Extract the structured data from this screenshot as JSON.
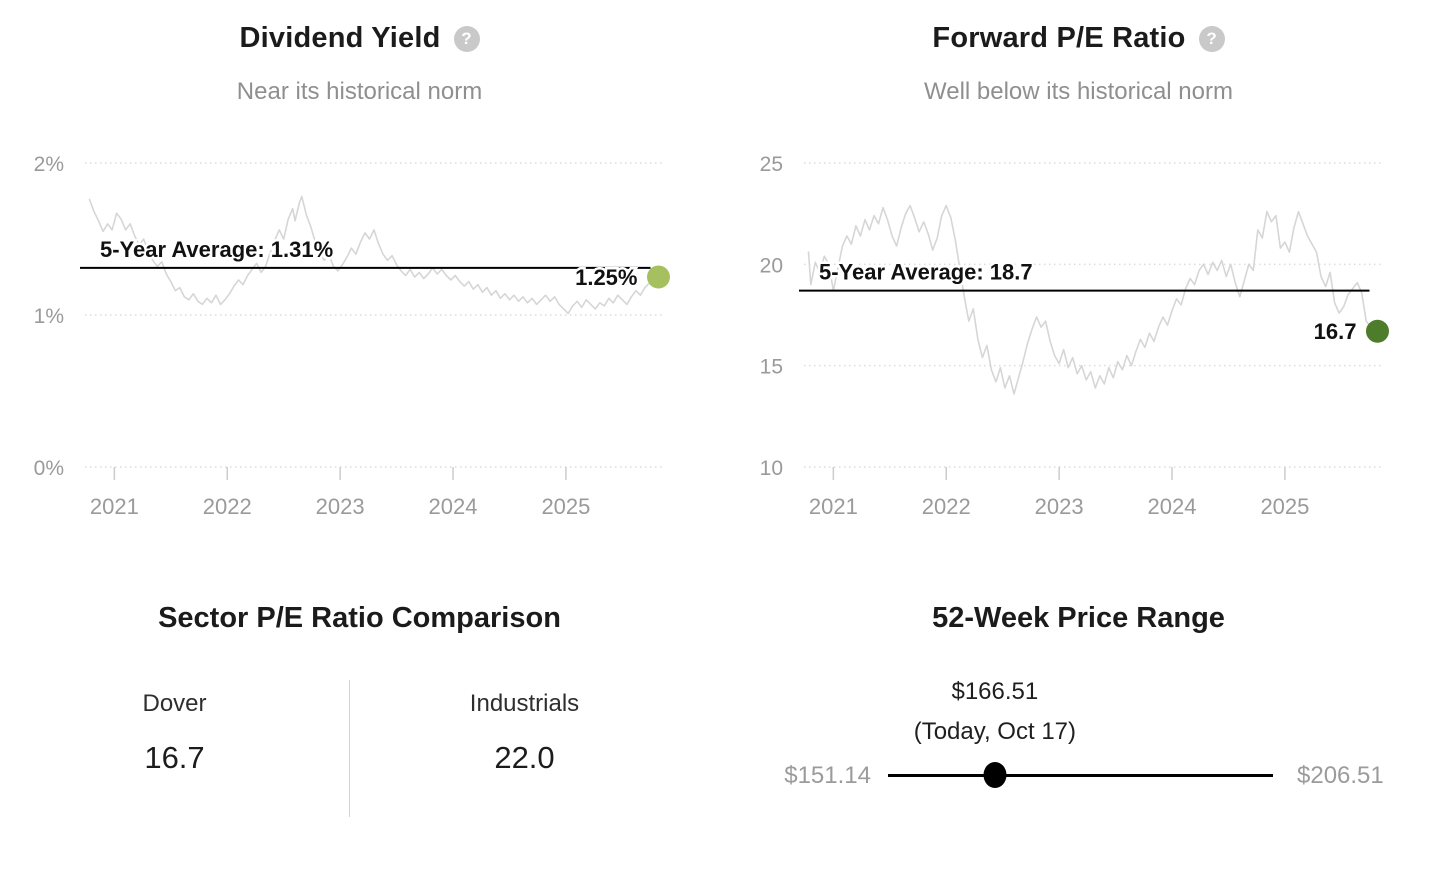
{
  "chart_data": [
    {
      "type": "line",
      "title": "Dividend Yield",
      "subtitle": "Near its historical norm",
      "help_icon": "?",
      "grid": true,
      "line_color": "#d6d6d6",
      "grid_color": "#dcdcdc",
      "axis_text_color": "#9a9a9a",
      "y_axis": {
        "min": 0,
        "max": 2,
        "ticks": [
          {
            "value": 2,
            "label": "2%"
          },
          {
            "value": 1,
            "label": "1%"
          },
          {
            "value": 0,
            "label": "0%"
          }
        ]
      },
      "x_axis": {
        "min": 2020.74,
        "max": 2025.86,
        "ticks": [
          {
            "value": 2021,
            "label": "2021"
          },
          {
            "value": 2022,
            "label": "2022"
          },
          {
            "value": 2023,
            "label": "2023"
          },
          {
            "value": 2024,
            "label": "2024"
          },
          {
            "value": 2025,
            "label": "2025"
          }
        ]
      },
      "average_line": {
        "value": 1.31,
        "label": "5-Year Average: 1.31%",
        "color": "#000000"
      },
      "current_point": {
        "value": 1.25,
        "label": "1.25%",
        "color": "#a6c05f"
      },
      "series": [
        [
          2020.78,
          1.76
        ],
        [
          2020.82,
          1.68
        ],
        [
          2020.86,
          1.62
        ],
        [
          2020.9,
          1.55
        ],
        [
          2020.94,
          1.6
        ],
        [
          2020.98,
          1.56
        ],
        [
          2021.02,
          1.67
        ],
        [
          2021.06,
          1.63
        ],
        [
          2021.1,
          1.56
        ],
        [
          2021.14,
          1.6
        ],
        [
          2021.18,
          1.52
        ],
        [
          2021.22,
          1.46
        ],
        [
          2021.26,
          1.5
        ],
        [
          2021.3,
          1.42
        ],
        [
          2021.34,
          1.36
        ],
        [
          2021.38,
          1.32
        ],
        [
          2021.42,
          1.35
        ],
        [
          2021.46,
          1.27
        ],
        [
          2021.5,
          1.22
        ],
        [
          2021.54,
          1.16
        ],
        [
          2021.58,
          1.18
        ],
        [
          2021.62,
          1.12
        ],
        [
          2021.66,
          1.1
        ],
        [
          2021.7,
          1.14
        ],
        [
          2021.74,
          1.09
        ],
        [
          2021.78,
          1.07
        ],
        [
          2021.82,
          1.11
        ],
        [
          2021.86,
          1.08
        ],
        [
          2021.9,
          1.13
        ],
        [
          2021.94,
          1.07
        ],
        [
          2021.98,
          1.1
        ],
        [
          2022.02,
          1.14
        ],
        [
          2022.06,
          1.19
        ],
        [
          2022.1,
          1.23
        ],
        [
          2022.14,
          1.2
        ],
        [
          2022.18,
          1.26
        ],
        [
          2022.22,
          1.3
        ],
        [
          2022.26,
          1.34
        ],
        [
          2022.3,
          1.28
        ],
        [
          2022.34,
          1.32
        ],
        [
          2022.38,
          1.41
        ],
        [
          2022.42,
          1.49
        ],
        [
          2022.46,
          1.56
        ],
        [
          2022.5,
          1.5
        ],
        [
          2022.54,
          1.63
        ],
        [
          2022.58,
          1.7
        ],
        [
          2022.6,
          1.62
        ],
        [
          2022.64,
          1.74
        ],
        [
          2022.66,
          1.78
        ],
        [
          2022.7,
          1.66
        ],
        [
          2022.74,
          1.58
        ],
        [
          2022.78,
          1.48
        ],
        [
          2022.82,
          1.4
        ],
        [
          2022.86,
          1.36
        ],
        [
          2022.9,
          1.4
        ],
        [
          2022.94,
          1.32
        ],
        [
          2022.98,
          1.29
        ],
        [
          2023.02,
          1.33
        ],
        [
          2023.06,
          1.38
        ],
        [
          2023.1,
          1.44
        ],
        [
          2023.14,
          1.4
        ],
        [
          2023.18,
          1.48
        ],
        [
          2023.22,
          1.54
        ],
        [
          2023.26,
          1.5
        ],
        [
          2023.3,
          1.56
        ],
        [
          2023.34,
          1.47
        ],
        [
          2023.38,
          1.4
        ],
        [
          2023.42,
          1.36
        ],
        [
          2023.46,
          1.39
        ],
        [
          2023.5,
          1.33
        ],
        [
          2023.54,
          1.29
        ],
        [
          2023.58,
          1.26
        ],
        [
          2023.62,
          1.3
        ],
        [
          2023.66,
          1.25
        ],
        [
          2023.7,
          1.28
        ],
        [
          2023.74,
          1.24
        ],
        [
          2023.78,
          1.27
        ],
        [
          2023.82,
          1.31
        ],
        [
          2023.86,
          1.27
        ],
        [
          2023.9,
          1.3
        ],
        [
          2023.94,
          1.26
        ],
        [
          2023.98,
          1.23
        ],
        [
          2024.02,
          1.26
        ],
        [
          2024.06,
          1.22
        ],
        [
          2024.1,
          1.19
        ],
        [
          2024.14,
          1.22
        ],
        [
          2024.18,
          1.17
        ],
        [
          2024.22,
          1.2
        ],
        [
          2024.26,
          1.15
        ],
        [
          2024.3,
          1.18
        ],
        [
          2024.34,
          1.13
        ],
        [
          2024.38,
          1.16
        ],
        [
          2024.42,
          1.11
        ],
        [
          2024.46,
          1.14
        ],
        [
          2024.5,
          1.1
        ],
        [
          2024.54,
          1.13
        ],
        [
          2024.58,
          1.09
        ],
        [
          2024.62,
          1.12
        ],
        [
          2024.66,
          1.08
        ],
        [
          2024.7,
          1.11
        ],
        [
          2024.74,
          1.07
        ],
        [
          2024.78,
          1.1
        ],
        [
          2024.82,
          1.13
        ],
        [
          2024.86,
          1.09
        ],
        [
          2024.9,
          1.12
        ],
        [
          2024.94,
          1.07
        ],
        [
          2024.98,
          1.04
        ],
        [
          2025.02,
          1.01
        ],
        [
          2025.06,
          1.06
        ],
        [
          2025.1,
          1.09
        ],
        [
          2025.14,
          1.05
        ],
        [
          2025.18,
          1.1
        ],
        [
          2025.22,
          1.07
        ],
        [
          2025.26,
          1.04
        ],
        [
          2025.3,
          1.08
        ],
        [
          2025.34,
          1.06
        ],
        [
          2025.38,
          1.11
        ],
        [
          2025.42,
          1.08
        ],
        [
          2025.46,
          1.13
        ],
        [
          2025.5,
          1.1
        ],
        [
          2025.54,
          1.07
        ],
        [
          2025.58,
          1.12
        ],
        [
          2025.62,
          1.16
        ],
        [
          2025.66,
          1.13
        ],
        [
          2025.7,
          1.18
        ],
        [
          2025.74,
          1.21
        ],
        [
          2025.78,
          1.23
        ],
        [
          2025.82,
          1.25
        ]
      ]
    },
    {
      "type": "line",
      "title": "Forward P/E Ratio",
      "subtitle": "Well below its historical norm",
      "help_icon": "?",
      "grid": true,
      "line_color": "#d6d6d6",
      "grid_color": "#dcdcdc",
      "axis_text_color": "#9a9a9a",
      "y_axis": {
        "min": 10,
        "max": 25,
        "ticks": [
          {
            "value": 25,
            "label": "25"
          },
          {
            "value": 20,
            "label": "20"
          },
          {
            "value": 15,
            "label": "15"
          },
          {
            "value": 10,
            "label": "10"
          }
        ]
      },
      "x_axis": {
        "min": 2020.74,
        "max": 2025.86,
        "ticks": [
          {
            "value": 2021,
            "label": "2021"
          },
          {
            "value": 2022,
            "label": "2022"
          },
          {
            "value": 2023,
            "label": "2023"
          },
          {
            "value": 2024,
            "label": "2024"
          },
          {
            "value": 2025,
            "label": "2025"
          }
        ]
      },
      "average_line": {
        "value": 18.7,
        "label": "5-Year Average: 18.7",
        "color": "#000000"
      },
      "current_point": {
        "value": 16.7,
        "label": "16.7",
        "color": "#4d7c2b"
      },
      "series": [
        [
          2020.78,
          20.6
        ],
        [
          2020.8,
          19.0
        ],
        [
          2020.84,
          20.1
        ],
        [
          2020.88,
          19.6
        ],
        [
          2020.92,
          20.4
        ],
        [
          2020.96,
          20.0
        ],
        [
          2021.0,
          18.7
        ],
        [
          2021.04,
          19.8
        ],
        [
          2021.08,
          20.9
        ],
        [
          2021.12,
          21.4
        ],
        [
          2021.16,
          21.0
        ],
        [
          2021.2,
          21.9
        ],
        [
          2021.24,
          21.4
        ],
        [
          2021.28,
          22.2
        ],
        [
          2021.32,
          21.7
        ],
        [
          2021.36,
          22.4
        ],
        [
          2021.4,
          22.0
        ],
        [
          2021.44,
          22.8
        ],
        [
          2021.48,
          22.2
        ],
        [
          2021.52,
          21.4
        ],
        [
          2021.56,
          20.9
        ],
        [
          2021.6,
          21.8
        ],
        [
          2021.64,
          22.5
        ],
        [
          2021.68,
          22.9
        ],
        [
          2021.72,
          22.3
        ],
        [
          2021.76,
          21.6
        ],
        [
          2021.8,
          22.1
        ],
        [
          2021.84,
          21.5
        ],
        [
          2021.88,
          20.7
        ],
        [
          2021.92,
          21.3
        ],
        [
          2021.96,
          22.4
        ],
        [
          2022.0,
          22.9
        ],
        [
          2022.04,
          22.3
        ],
        [
          2022.08,
          21.2
        ],
        [
          2022.12,
          19.8
        ],
        [
          2022.16,
          18.4
        ],
        [
          2022.2,
          17.2
        ],
        [
          2022.24,
          17.8
        ],
        [
          2022.28,
          16.3
        ],
        [
          2022.32,
          15.4
        ],
        [
          2022.36,
          16.0
        ],
        [
          2022.4,
          14.8
        ],
        [
          2022.44,
          14.2
        ],
        [
          2022.48,
          14.9
        ],
        [
          2022.52,
          13.9
        ],
        [
          2022.56,
          14.5
        ],
        [
          2022.6,
          13.6
        ],
        [
          2022.64,
          14.4
        ],
        [
          2022.68,
          15.2
        ],
        [
          2022.72,
          16.1
        ],
        [
          2022.76,
          16.8
        ],
        [
          2022.8,
          17.4
        ],
        [
          2022.84,
          16.9
        ],
        [
          2022.88,
          17.2
        ],
        [
          2022.92,
          16.2
        ],
        [
          2022.96,
          15.5
        ],
        [
          2023.0,
          15.1
        ],
        [
          2023.04,
          15.8
        ],
        [
          2023.08,
          14.9
        ],
        [
          2023.12,
          15.4
        ],
        [
          2023.16,
          14.6
        ],
        [
          2023.2,
          15.0
        ],
        [
          2023.24,
          14.3
        ],
        [
          2023.28,
          14.7
        ],
        [
          2023.32,
          13.9
        ],
        [
          2023.36,
          14.5
        ],
        [
          2023.4,
          14.1
        ],
        [
          2023.44,
          14.9
        ],
        [
          2023.48,
          14.4
        ],
        [
          2023.52,
          15.2
        ],
        [
          2023.56,
          14.8
        ],
        [
          2023.6,
          15.5
        ],
        [
          2023.64,
          15.0
        ],
        [
          2023.68,
          15.7
        ],
        [
          2023.72,
          16.3
        ],
        [
          2023.76,
          15.9
        ],
        [
          2023.8,
          16.6
        ],
        [
          2023.84,
          16.2
        ],
        [
          2023.88,
          16.9
        ],
        [
          2023.92,
          17.4
        ],
        [
          2023.96,
          17.0
        ],
        [
          2024.0,
          17.7
        ],
        [
          2024.04,
          18.3
        ],
        [
          2024.08,
          18.0
        ],
        [
          2024.12,
          18.8
        ],
        [
          2024.16,
          19.3
        ],
        [
          2024.2,
          19.0
        ],
        [
          2024.24,
          19.7
        ],
        [
          2024.28,
          20.0
        ],
        [
          2024.32,
          19.5
        ],
        [
          2024.36,
          20.1
        ],
        [
          2024.4,
          19.7
        ],
        [
          2024.44,
          20.2
        ],
        [
          2024.48,
          19.4
        ],
        [
          2024.52,
          20.0
        ],
        [
          2024.56,
          19.1
        ],
        [
          2024.6,
          18.4
        ],
        [
          2024.64,
          19.2
        ],
        [
          2024.68,
          20.0
        ],
        [
          2024.72,
          19.7
        ],
        [
          2024.76,
          21.7
        ],
        [
          2024.8,
          21.3
        ],
        [
          2024.84,
          22.6
        ],
        [
          2024.88,
          22.1
        ],
        [
          2024.92,
          22.4
        ],
        [
          2024.96,
          20.8
        ],
        [
          2025.0,
          21.1
        ],
        [
          2025.04,
          20.6
        ],
        [
          2025.08,
          21.8
        ],
        [
          2025.12,
          22.6
        ],
        [
          2025.16,
          22.0
        ],
        [
          2025.2,
          21.4
        ],
        [
          2025.24,
          21.0
        ],
        [
          2025.28,
          20.6
        ],
        [
          2025.32,
          19.4
        ],
        [
          2025.36,
          18.9
        ],
        [
          2025.4,
          19.6
        ],
        [
          2025.44,
          18.1
        ],
        [
          2025.48,
          17.6
        ],
        [
          2025.52,
          17.9
        ],
        [
          2025.56,
          18.5
        ],
        [
          2025.6,
          18.8
        ],
        [
          2025.64,
          19.1
        ],
        [
          2025.68,
          18.6
        ],
        [
          2025.72,
          17.2
        ],
        [
          2025.76,
          16.9
        ],
        [
          2025.8,
          16.4
        ],
        [
          2025.82,
          16.7
        ]
      ]
    },
    {
      "type": "table",
      "title": "Sector P/E Ratio Comparison",
      "columns": [
        {
          "label": "Dover",
          "value": "16.7"
        },
        {
          "label": "Industrials",
          "value": "22.0"
        }
      ]
    },
    {
      "type": "range",
      "title": "52-Week Price Range",
      "low": {
        "label": "$151.14",
        "value": 151.14
      },
      "high": {
        "label": "$206.51",
        "value": 206.51
      },
      "current": {
        "label": "$166.51",
        "note": "(Today, Oct 17)",
        "value": 166.51
      },
      "marker_color": "#000000"
    }
  ]
}
